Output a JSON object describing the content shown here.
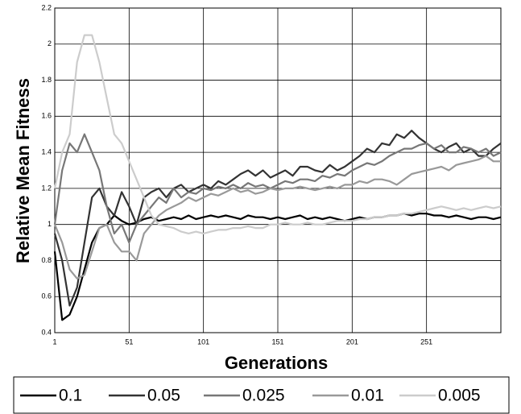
{
  "chart_data": {
    "type": "line",
    "x_label": "Generations",
    "y_label": "Relative Mean Fitness",
    "xlim": [
      1,
      301
    ],
    "xticks": [
      1,
      51,
      101,
      151,
      201,
      251
    ],
    "ylim": [
      0.4,
      2.2
    ],
    "yticks": [
      0.4,
      0.6,
      0.8,
      1,
      1.2,
      1.4,
      1.6,
      1.8,
      2,
      2.2
    ],
    "grid": true,
    "legend": "bottom",
    "x": [
      1,
      6,
      11,
      16,
      21,
      26,
      31,
      36,
      41,
      46,
      51,
      56,
      61,
      66,
      71,
      76,
      81,
      86,
      91,
      96,
      101,
      106,
      111,
      116,
      121,
      126,
      131,
      136,
      141,
      146,
      151,
      156,
      161,
      166,
      171,
      176,
      181,
      186,
      191,
      196,
      201,
      206,
      211,
      216,
      221,
      226,
      231,
      236,
      241,
      246,
      251,
      256,
      261,
      266,
      271,
      276,
      281,
      286,
      291,
      296,
      301
    ],
    "series": [
      {
        "name": "0.1",
        "color": "#000000",
        "values": [
          0.85,
          0.47,
          0.5,
          0.6,
          0.75,
          0.9,
          0.98,
          1.0,
          1.05,
          1.02,
          1.0,
          1.01,
          1.03,
          1.04,
          1.02,
          1.03,
          1.04,
          1.03,
          1.05,
          1.03,
          1.04,
          1.05,
          1.04,
          1.05,
          1.04,
          1.03,
          1.05,
          1.04,
          1.04,
          1.03,
          1.04,
          1.03,
          1.04,
          1.05,
          1.03,
          1.04,
          1.03,
          1.04,
          1.03,
          1.02,
          1.03,
          1.04,
          1.03,
          1.04,
          1.04,
          1.05,
          1.05,
          1.06,
          1.05,
          1.06,
          1.06,
          1.05,
          1.05,
          1.04,
          1.05,
          1.04,
          1.03,
          1.04,
          1.04,
          1.03,
          1.04
        ]
      },
      {
        "name": "0.05",
        "color": "#333333",
        "values": [
          0.95,
          0.8,
          0.55,
          0.65,
          0.9,
          1.15,
          1.2,
          1.1,
          1.05,
          1.18,
          1.1,
          1.0,
          1.15,
          1.18,
          1.2,
          1.15,
          1.2,
          1.22,
          1.18,
          1.2,
          1.22,
          1.2,
          1.24,
          1.22,
          1.25,
          1.28,
          1.3,
          1.27,
          1.3,
          1.26,
          1.28,
          1.3,
          1.27,
          1.32,
          1.32,
          1.3,
          1.29,
          1.33,
          1.3,
          1.32,
          1.35,
          1.38,
          1.42,
          1.4,
          1.45,
          1.44,
          1.5,
          1.48,
          1.52,
          1.48,
          1.45,
          1.42,
          1.4,
          1.43,
          1.45,
          1.4,
          1.42,
          1.38,
          1.38,
          1.42,
          1.45
        ]
      },
      {
        "name": "0.025",
        "color": "#777777",
        "values": [
          1.0,
          1.3,
          1.45,
          1.4,
          1.5,
          1.4,
          1.3,
          1.1,
          0.95,
          1.0,
          0.9,
          1.0,
          1.05,
          1.1,
          1.15,
          1.12,
          1.2,
          1.15,
          1.18,
          1.17,
          1.2,
          1.19,
          1.21,
          1.2,
          1.22,
          1.2,
          1.23,
          1.21,
          1.22,
          1.2,
          1.22,
          1.24,
          1.23,
          1.25,
          1.25,
          1.24,
          1.27,
          1.26,
          1.28,
          1.27,
          1.3,
          1.32,
          1.34,
          1.33,
          1.35,
          1.38,
          1.4,
          1.42,
          1.42,
          1.44,
          1.45,
          1.42,
          1.44,
          1.4,
          1.4,
          1.43,
          1.42,
          1.4,
          1.42,
          1.38,
          1.4
        ]
      },
      {
        "name": "0.01",
        "color": "#999999",
        "values": [
          1.0,
          0.9,
          0.75,
          0.7,
          0.72,
          0.85,
          0.98,
          1.0,
          0.9,
          0.85,
          0.85,
          0.8,
          0.95,
          1.0,
          1.05,
          1.08,
          1.1,
          1.12,
          1.15,
          1.13,
          1.15,
          1.17,
          1.16,
          1.18,
          1.2,
          1.18,
          1.19,
          1.17,
          1.18,
          1.2,
          1.19,
          1.2,
          1.2,
          1.21,
          1.2,
          1.19,
          1.2,
          1.21,
          1.2,
          1.22,
          1.22,
          1.24,
          1.23,
          1.25,
          1.25,
          1.24,
          1.22,
          1.25,
          1.28,
          1.29,
          1.3,
          1.31,
          1.32,
          1.3,
          1.33,
          1.34,
          1.35,
          1.36,
          1.38,
          1.35,
          1.35
        ]
      },
      {
        "name": "0.005",
        "color": "#cccccc",
        "values": [
          1.2,
          1.4,
          1.5,
          1.9,
          2.05,
          2.05,
          1.9,
          1.7,
          1.5,
          1.45,
          1.35,
          1.25,
          1.15,
          1.05,
          1.0,
          0.99,
          0.98,
          0.96,
          0.95,
          0.96,
          0.95,
          0.96,
          0.97,
          0.97,
          0.98,
          0.98,
          0.99,
          0.98,
          0.98,
          1.0,
          1.0,
          1.01,
          1.0,
          1.0,
          1.01,
          1.0,
          1.0,
          1.01,
          1.02,
          1.02,
          1.02,
          1.03,
          1.03,
          1.04,
          1.04,
          1.05,
          1.05,
          1.06,
          1.06,
          1.07,
          1.08,
          1.09,
          1.1,
          1.09,
          1.08,
          1.09,
          1.08,
          1.09,
          1.1,
          1.09,
          1.1
        ]
      }
    ]
  }
}
